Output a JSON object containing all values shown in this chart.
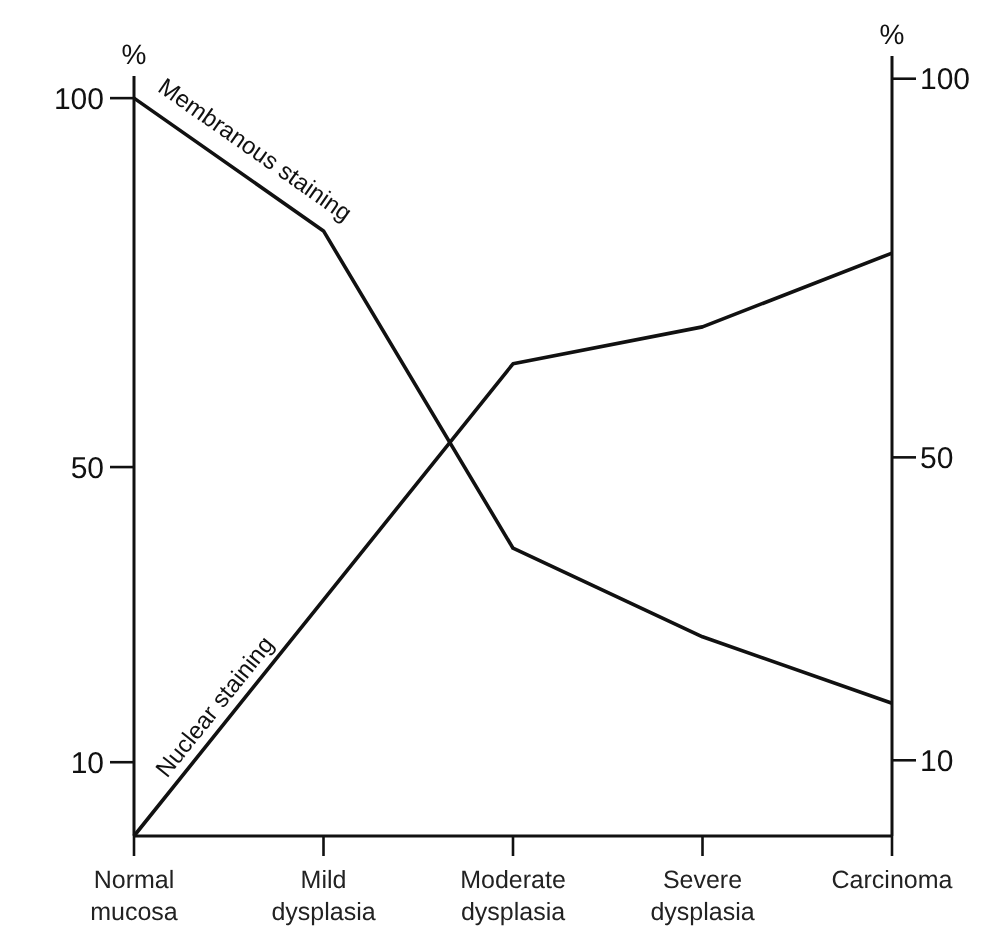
{
  "chart_data": {
    "type": "line",
    "categories": [
      "Normal mucosa",
      "Mild dysplasia",
      "Moderate dysplasia",
      "Severe dysplasia",
      "Carcinoma"
    ],
    "series": [
      {
        "name": "Membranous staining",
        "color": "#111111",
        "values": [
          100,
          82,
          39,
          27,
          18
        ]
      },
      {
        "name": "Nuclear staining",
        "color": "#111111",
        "values": [
          0,
          32,
          64,
          69,
          79
        ]
      }
    ],
    "ylabel": "%",
    "y2label": "%",
    "ylim": [
      0,
      103
    ],
    "yticks": [
      10,
      50,
      100
    ],
    "y2lim": [
      0,
      103
    ],
    "y2ticks": [
      10,
      50,
      100
    ],
    "legend": false,
    "grid": false,
    "marker": "none",
    "line_style": "solid"
  }
}
